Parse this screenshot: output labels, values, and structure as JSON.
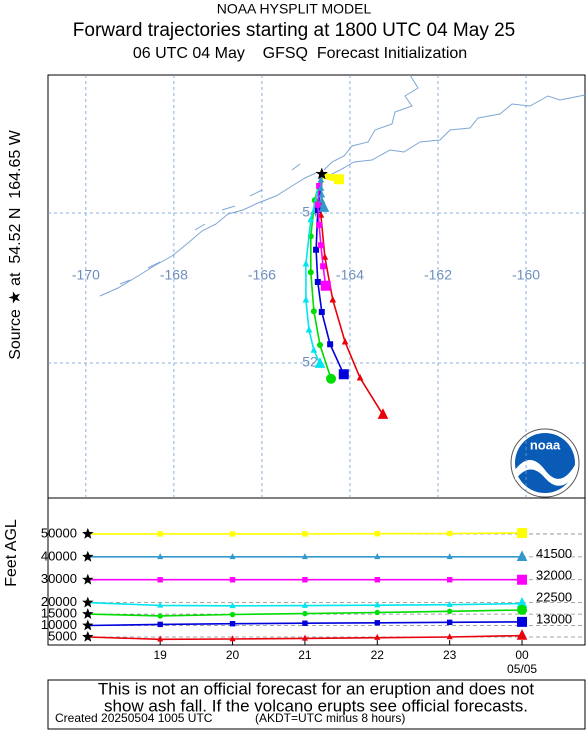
{
  "header": {
    "line1": "NOAA HYSPLIT MODEL",
    "line2": "Forward trajectories starting at 1800 UTC 04 May 25",
    "line3": "06 UTC 04 May    GFSQ  Forecast Initialization"
  },
  "source_label": "Source ★ at  54.52 N  164.65 W",
  "logo": "noaa",
  "map": {
    "lonlim": [
      -170.86,
      -158.66
    ],
    "latlim": [
      50.2,
      55.84
    ],
    "lon_ticks": [
      -170,
      -168,
      -166,
      -164,
      -162,
      -160
    ],
    "lat_ticks": [
      52,
      54
    ]
  },
  "height_panel": {
    "ylabel": "Feet AGL",
    "ylim": [
      1500,
      65700
    ],
    "yticks": [
      50000,
      40000,
      30000,
      20000,
      15000,
      10000,
      5000
    ],
    "y2lim": [
      2000,
      66200
    ],
    "y2ticks": [
      41500,
      32000,
      22500,
      13000
    ],
    "x": [
      18,
      19,
      20,
      21,
      22,
      23,
      24
    ],
    "xlim": [
      17.45,
      24.87
    ],
    "xticks": [
      19,
      20,
      21,
      22,
      23,
      {
        "value": 24,
        "label": "00"
      }
    ],
    "date_label": "05/05"
  },
  "trajectories": [
    {
      "color": "#e8000b",
      "marker": "triangle",
      "lon": [
        -164.64,
        -164.66,
        -164.57,
        -164.39,
        -164.11,
        -163.77,
        -163.25
      ],
      "lat": [
        54.52,
        53.97,
        53.41,
        52.84,
        52.28,
        51.8,
        51.31
      ],
      "height": [
        5000,
        4000,
        4100,
        4400,
        4700,
        5000,
        5600
      ]
    },
    {
      "color": "#0000dd",
      "marker": "square",
      "lon": [
        -164.64,
        -164.73,
        -164.77,
        -164.73,
        -164.64,
        -164.45,
        -164.14
      ],
      "lat": [
        54.52,
        54.04,
        53.51,
        53.08,
        52.68,
        52.25,
        51.85
      ],
      "height": [
        10000,
        10500,
        10800,
        11000,
        11200,
        11400,
        11600
      ]
    },
    {
      "color": "#00dd00",
      "marker": "circle",
      "lon": [
        -164.64,
        -164.8,
        -164.89,
        -164.89,
        -164.82,
        -164.68,
        -164.43
      ],
      "lat": [
        54.52,
        54.17,
        53.69,
        53.21,
        52.69,
        52.24,
        51.79
      ],
      "height": [
        15000,
        14200,
        14800,
        15200,
        15700,
        16200,
        16800
      ]
    },
    {
      "color": "#00e5ee",
      "marker": "triangle",
      "lon": [
        -164.64,
        -164.89,
        -165.0,
        -165.0,
        -164.93,
        -164.82,
        -164.68
      ],
      "lat": [
        54.52,
        53.91,
        53.32,
        52.84,
        52.44,
        52.17,
        51.99
      ],
      "height": [
        20000,
        18800,
        18600,
        18700,
        18900,
        19100,
        19600
      ]
    },
    {
      "color": "#ff00ff",
      "marker": "square",
      "lon": [
        -164.64,
        -164.7,
        -164.73,
        -164.7,
        -164.66,
        -164.61,
        -164.55
      ],
      "lat": [
        54.52,
        54.36,
        54.11,
        53.84,
        53.57,
        53.29,
        53.03
      ],
      "height": [
        30000,
        30000,
        30000,
        30000,
        30000,
        30000,
        30000
      ]
    },
    {
      "color": "#3399cc",
      "marker": "triangle",
      "lon": [
        -164.64,
        -164.66,
        -164.66,
        -164.64,
        -164.64,
        -164.61,
        -164.59
      ],
      "lat": [
        54.52,
        54.44,
        54.33,
        54.24,
        54.17,
        54.11,
        54.07
      ],
      "height": [
        40000,
        40000,
        40000,
        40000,
        40000,
        40000,
        40000
      ]
    },
    {
      "color": "#ffff00",
      "marker": "square",
      "lon": [
        -164.64,
        -164.55,
        -164.45,
        -164.39,
        -164.34,
        -164.3,
        -164.25
      ],
      "lat": [
        54.52,
        54.49,
        54.48,
        54.47,
        54.47,
        54.45,
        54.45
      ],
      "height": [
        50000,
        50000,
        50000,
        50000,
        50100,
        50200,
        50400
      ]
    }
  ],
  "footer": {
    "disclaimer": [
      "This is not an official forecast for an eruption and does not",
      "show ash fall. If the volcano erupts see official forecasts."
    ],
    "created": "Created 20250504 1005 UTC",
    "timezone": "(AKDT=UTC minus 8 hours)"
  }
}
